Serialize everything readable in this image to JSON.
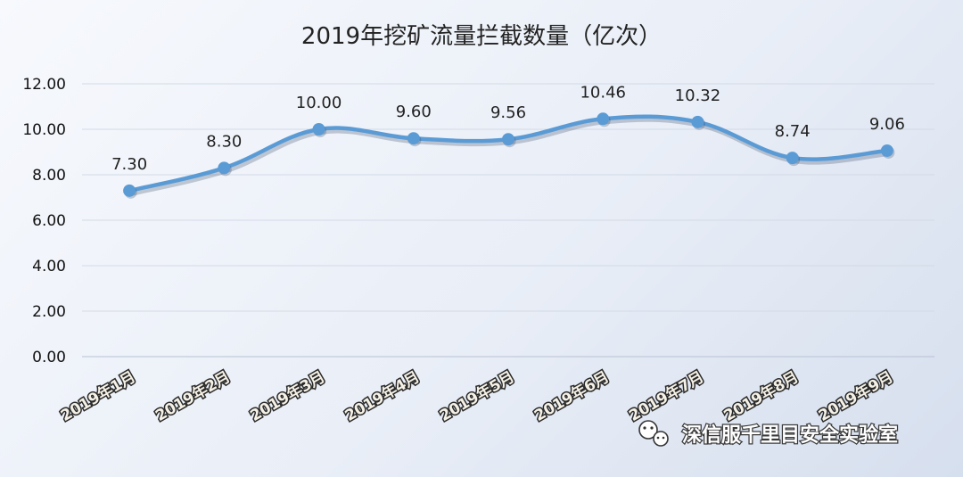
{
  "chart_data": {
    "type": "line",
    "title": "2019年挖矿流量拦截数量（亿次）",
    "xlabel": "",
    "ylabel": "",
    "categories": [
      "2019年1月",
      "2019年2月",
      "2019年3月",
      "2019年4月",
      "2019年5月",
      "2019年6月",
      "2019年7月",
      "2019年8月",
      "2019年9月"
    ],
    "values": [
      7.3,
      8.3,
      10.0,
      9.6,
      9.56,
      10.46,
      10.32,
      8.74,
      9.06
    ],
    "value_labels": [
      "7.30",
      "8.30",
      "10.00",
      "9.60",
      "9.56",
      "10.46",
      "10.32",
      "8.74",
      "9.06"
    ],
    "ylim": [
      0,
      12
    ],
    "yticks": [
      "0.00",
      "2.00",
      "4.00",
      "6.00",
      "8.00",
      "10.00",
      "12.00"
    ],
    "ytick_values": [
      0,
      2,
      4,
      6,
      8,
      10,
      12
    ],
    "grid": true,
    "line_color": "#5b9bd5",
    "smooth": true
  },
  "watermark": {
    "text": "深信服千里目安全实验室",
    "icon": "wechat-icon"
  }
}
